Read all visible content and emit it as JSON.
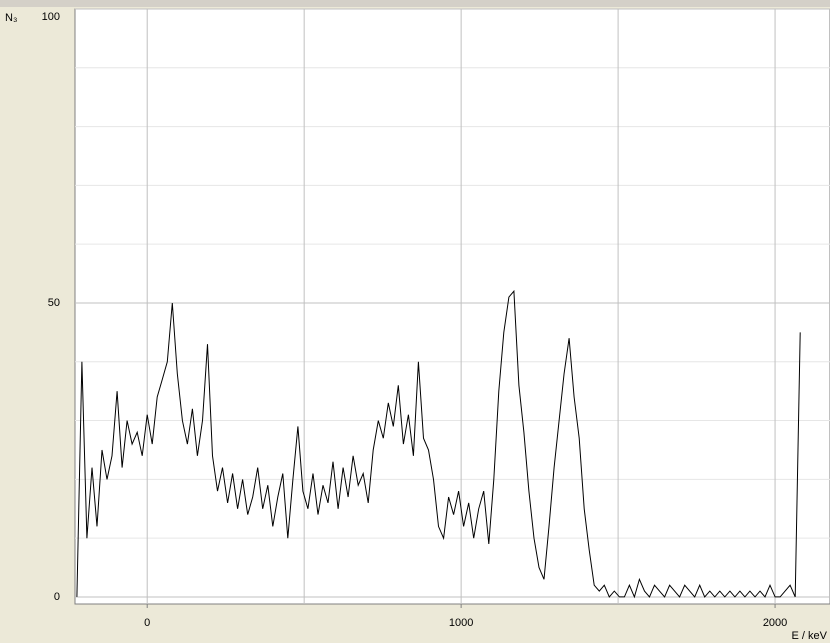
{
  "chart_data": {
    "type": "line",
    "ylabel": "N₃",
    "xlabel": "E / keV",
    "x": [
      -224,
      -208,
      -192,
      -176,
      -160,
      -144,
      -128,
      -112,
      -96,
      -80,
      -64,
      -48,
      -32,
      -16,
      0,
      16,
      32,
      48,
      64,
      80,
      96,
      112,
      128,
      144,
      160,
      176,
      192,
      208,
      224,
      240,
      256,
      272,
      288,
      304,
      320,
      336,
      352,
      368,
      384,
      400,
      416,
      432,
      448,
      464,
      480,
      496,
      512,
      528,
      544,
      560,
      576,
      592,
      608,
      624,
      640,
      656,
      672,
      688,
      704,
      720,
      736,
      752,
      768,
      784,
      800,
      816,
      832,
      848,
      864,
      880,
      896,
      912,
      928,
      944,
      960,
      976,
      992,
      1008,
      1024,
      1040,
      1056,
      1072,
      1088,
      1104,
      1120,
      1136,
      1152,
      1168,
      1184,
      1200,
      1216,
      1232,
      1248,
      1264,
      1280,
      1296,
      1312,
      1328,
      1344,
      1360,
      1376,
      1392,
      1408,
      1424,
      1440,
      1456,
      1472,
      1488,
      1504,
      1520,
      1536,
      1552,
      1568,
      1584,
      1600,
      1616,
      1632,
      1648,
      1664,
      1680,
      1696,
      1712,
      1728,
      1744,
      1760,
      1776,
      1792,
      1808,
      1824,
      1840,
      1856,
      1872,
      1888,
      1904,
      1920,
      1936,
      1952,
      1968,
      1984,
      2000,
      2016,
      2032,
      2048,
      2064,
      2080
    ],
    "series": [
      {
        "color": "#000000",
        "values": [
          0,
          40,
          10,
          22,
          12,
          25,
          20,
          24,
          35,
          22,
          30,
          26,
          28,
          24,
          31,
          26,
          34,
          37,
          40,
          50,
          38,
          30,
          26,
          32,
          24,
          30,
          43,
          24,
          18,
          22,
          16,
          21,
          15,
          20,
          14,
          17,
          22,
          15,
          19,
          12,
          17,
          21,
          10,
          20,
          29,
          18,
          15,
          21,
          14,
          19,
          16,
          23,
          15,
          22,
          17,
          24,
          19,
          21,
          16,
          25,
          30,
          27,
          33,
          29,
          36,
          26,
          31,
          24,
          40,
          27,
          25,
          20,
          12,
          10,
          17,
          14,
          18,
          12,
          16,
          10,
          15,
          18,
          9,
          20,
          35,
          45,
          51,
          52,
          36,
          28,
          18,
          10,
          5,
          3,
          12,
          22,
          30,
          38,
          44,
          34,
          27,
          15,
          8,
          2,
          1,
          2,
          0,
          1,
          0,
          0,
          2,
          0,
          3,
          1,
          0,
          2,
          1,
          0,
          2,
          1,
          0,
          2,
          1,
          0,
          2,
          0,
          1,
          0,
          1,
          0,
          1,
          0,
          1,
          0,
          1,
          0,
          1,
          0,
          2,
          0,
          0,
          1,
          2,
          0,
          45
        ]
      }
    ],
    "xlim": [
      -230,
      2175
    ],
    "ylim": [
      -1.2,
      100
    ],
    "xticks": [
      0,
      1000,
      2000
    ],
    "yticks": [
      0,
      50,
      100
    ],
    "grid": true,
    "xgrid_step": 500,
    "ygrid_step": 10
  }
}
